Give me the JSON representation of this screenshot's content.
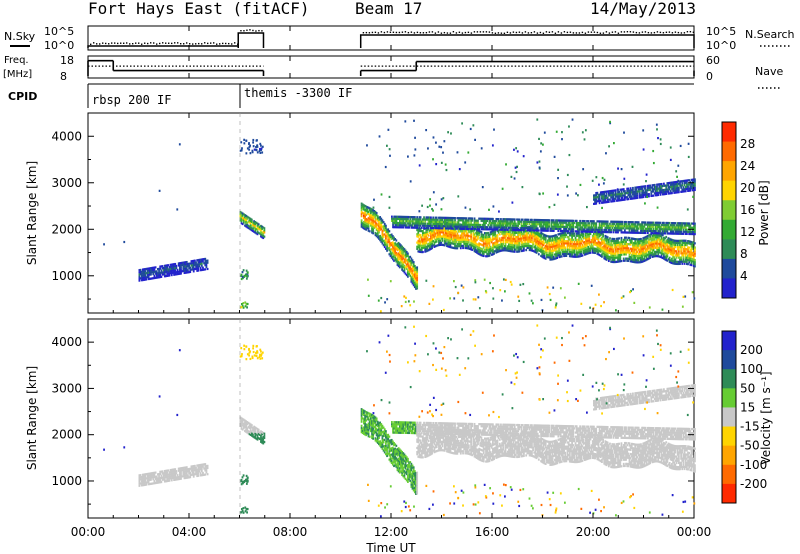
{
  "chart_data": {
    "type": "heatmap",
    "header": {
      "station": "Fort Hays East (fitACF)",
      "beam": "Beam 17",
      "date": "14/May/2013"
    },
    "time_axis": {
      "label": "Time UT",
      "ticks": [
        "00:00",
        "04:00",
        "08:00",
        "12:00",
        "16:00",
        "20:00",
        "00:00"
      ],
      "range_hours": [
        0,
        24
      ]
    },
    "status_panels": {
      "nsky": {
        "left_label": "N.Sky",
        "right_label": "N.Search",
        "left_ticks": [
          "10^5",
          "10^0"
        ],
        "right_ticks": [
          "10^5",
          "10^0"
        ],
        "segments": [
          {
            "t0": 0.0,
            "t1": 5.95,
            "level": 0.1
          },
          {
            "t0": 5.95,
            "t1": 6.95,
            "level": 0.75
          },
          {
            "t0": 10.8,
            "t1": 24.0,
            "level": 0.65
          }
        ]
      },
      "freq": {
        "left_label": "Freq.",
        "left_unit": "[MHz]",
        "right_label": "Nave",
        "left_ticks": [
          "18",
          "8"
        ],
        "right_ticks": [
          "60",
          "0"
        ],
        "freq_segments": [
          {
            "t0": 0.0,
            "t1": 1.0,
            "mhz": 16.5
          },
          {
            "t0": 1.0,
            "t1": 6.95,
            "mhz": 11.0
          },
          {
            "t0": 10.8,
            "t1": 13.0,
            "mhz": 11.0
          },
          {
            "t0": 13.0,
            "t1": 24.0,
            "mhz": 16.0
          }
        ],
        "nave_segments": [
          {
            "t0": 0.0,
            "t1": 6.95,
            "nave": 33
          },
          {
            "t0": 10.8,
            "t1": 24.0,
            "nave": 33
          }
        ]
      },
      "cpid": {
        "label": "CPID",
        "programs": [
          {
            "name": "rbsp 200 IF",
            "t_start": 0.0
          },
          {
            "name": "themis -3300 IF",
            "t_start": 5.95
          }
        ]
      }
    },
    "range_axis": {
      "label": "Slant Range [km]",
      "ticks": [
        1000,
        2000,
        3000,
        4000
      ],
      "ylim": [
        200,
        4500
      ]
    },
    "power_panel": {
      "colorbar_label": "Power [dB]",
      "colorbar_ticks": [
        "4",
        "8",
        "12",
        "16",
        "20",
        "24",
        "28"
      ],
      "colors": [
        "#2222cc",
        "#1f4a9c",
        "#2e8b57",
        "#33aa33",
        "#7fcc33",
        "#ffd400",
        "#ffa500",
        "#ff6a00",
        "#ff2a00"
      ],
      "scatter_bands": [
        {
          "t0": 10.8,
          "t1": 13.0,
          "r0": 2400,
          "r1": 1050,
          "core_db": 27
        },
        {
          "t0": 13.0,
          "t1": 24.0,
          "r0": 1900,
          "r1": 1550,
          "core_db": 26
        },
        {
          "t0": 12.0,
          "t1": 24.0,
          "r0": 2200,
          "r1": 2050,
          "core_db": 14
        },
        {
          "t0": 6.0,
          "t1": 6.95,
          "r0": 2300,
          "r1": 1950,
          "core_db": 20
        },
        {
          "t0": 2.0,
          "t1": 4.7,
          "r0": 1050,
          "r1": 1300,
          "core_db": 6
        },
        {
          "t0": 20.0,
          "t1": 24.0,
          "r0": 2700,
          "r1": 3000,
          "core_db": 8
        }
      ]
    },
    "velocity_panel": {
      "colorbar_label": "Velocity [m s⁻¹]",
      "colorbar_ticks": [
        "200",
        "100",
        "50",
        "15",
        "-15",
        "-50",
        "-100",
        "-200"
      ],
      "colors": [
        "#2222cc",
        "#1f4a9c",
        "#2e8b57",
        "#66cc33",
        "#c8c8c8",
        "#ffd400",
        "#ffa500",
        "#ff6a00",
        "#ff2a00"
      ],
      "ground_scatter_color": "#c8c8c8",
      "dominant": "ground scatter (±15 m/s) from 13:00 to 24:00, 1500–2300 km"
    }
  }
}
